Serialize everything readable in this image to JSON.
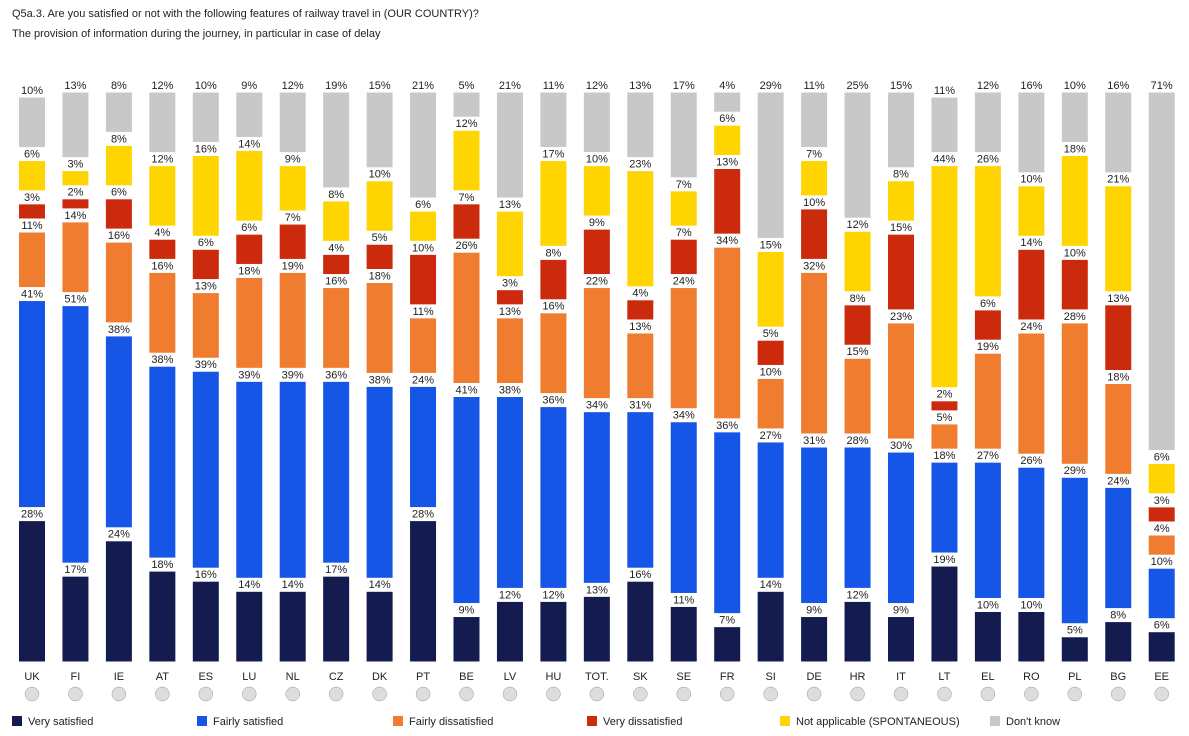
{
  "chart_data": {
    "type": "bar",
    "stacked": true,
    "title": "Q5a.3. Are you satisfied or not with the following features of railway travel in (OUR COUNTRY)?",
    "subtitle": "The provision of information during the journey, in particular in case of delay",
    "categories": [
      "UK",
      "FI",
      "IE",
      "AT",
      "ES",
      "LU",
      "NL",
      "CZ",
      "DK",
      "PT",
      "BE",
      "LV",
      "HU",
      "TOT.",
      "SK",
      "SE",
      "FR",
      "SI",
      "DE",
      "HR",
      "IT",
      "LT",
      "EL",
      "RO",
      "PL",
      "BG",
      "EE"
    ],
    "series": [
      {
        "name": "Very satisfied",
        "color": "#141c4f",
        "values": [
          28,
          17,
          24,
          18,
          16,
          14,
          14,
          17,
          14,
          28,
          9,
          12,
          12,
          13,
          16,
          11,
          7,
          14,
          9,
          12,
          9,
          19,
          10,
          10,
          5,
          8,
          6
        ],
        "value_labels": [
          "28%",
          "17%",
          "24%",
          "18%",
          "16%",
          "14%",
          "14%",
          "17%",
          "14%",
          "28%",
          "9%",
          "12%",
          "12%",
          "13%",
          "16%",
          "11%",
          "7%",
          "14%",
          "9%",
          "12%",
          "9%",
          "19%",
          "10%",
          "10%",
          "5%",
          "8%",
          "6%"
        ]
      },
      {
        "name": "Fairly satisfied",
        "color": "#1656e6",
        "values": [
          41,
          51,
          38,
          38,
          39,
          39,
          39,
          36,
          38,
          24,
          41,
          38,
          36,
          34,
          31,
          34,
          36,
          27,
          31,
          28,
          30,
          18,
          27,
          26,
          29,
          24,
          10
        ],
        "value_labels": [
          "41%",
          "51%",
          "38%",
          "38%",
          "39%",
          "39%",
          "39%",
          "36%",
          "38%",
          "24%",
          "41%",
          "38%",
          "36%",
          "34%",
          "31%",
          "34%",
          "36%",
          "27%",
          "31%",
          "28%",
          "30%",
          "18%",
          "27%",
          "26%",
          "29%",
          "24%",
          "10%"
        ]
      },
      {
        "name": "Fairly dissatisfied",
        "color": "#f07c30",
        "values": [
          11,
          14,
          16,
          16,
          13,
          18,
          19,
          16,
          18,
          11,
          26,
          13,
          16,
          22,
          13,
          24,
          34,
          10,
          32,
          15,
          23,
          5,
          19,
          24,
          28,
          18,
          4
        ],
        "value_labels": [
          "11%",
          "14%",
          "16%",
          "16%",
          "13%",
          "18%",
          "19%",
          "16%",
          "18%",
          "11%",
          "26%",
          "13%",
          "16%",
          "22%",
          "13%",
          "24%",
          "34%",
          "10%",
          "32%",
          "15%",
          "23%",
          "5%",
          "19%",
          "24%",
          "28%",
          "18%",
          "4%"
        ]
      },
      {
        "name": "Very dissatisfied",
        "color": "#cc2a0c",
        "values": [
          3,
          2,
          6,
          4,
          6,
          6,
          7,
          4,
          5,
          10,
          7,
          3,
          8,
          9,
          4,
          7,
          13,
          5,
          10,
          8,
          15,
          2,
          6,
          14,
          10,
          13,
          3
        ],
        "value_labels": [
          "3%",
          "2%",
          "6%",
          "4%",
          "6%",
          "6%",
          "7%",
          "4%",
          "5%",
          "10%",
          "7%",
          "3%",
          "8%",
          "9%",
          "4%",
          "7%",
          "13%",
          "5%",
          "10%",
          "8%",
          "15%",
          "2%",
          "6%",
          "14%",
          "10%",
          "13%",
          "3%"
        ]
      },
      {
        "name": "Not applicable (SPONTANEOUS)",
        "color": "#ffd500",
        "values": [
          6,
          3,
          8,
          12,
          16,
          14,
          9,
          8,
          10,
          6,
          12,
          13,
          17,
          10,
          23,
          7,
          6,
          15,
          7,
          12,
          8,
          44,
          26,
          10,
          18,
          21,
          6
        ],
        "value_labels": [
          "6%",
          "3%",
          "8%",
          "12%",
          "16%",
          "14%",
          "9%",
          "8%",
          "10%",
          "6%",
          "12%",
          "13%",
          "17%",
          "10%",
          "23%",
          "7%",
          "6%",
          "15%",
          "7%",
          "12%",
          "8%",
          "44%",
          "26%",
          "10%",
          "18%",
          "21%",
          "6%"
        ]
      },
      {
        "name": "Don't know",
        "color": "#c8c8c8",
        "values": [
          10,
          13,
          8,
          12,
          10,
          9,
          12,
          19,
          15,
          21,
          5,
          21,
          11,
          12,
          13,
          17,
          4,
          29,
          11,
          25,
          15,
          11,
          12,
          16,
          10,
          16,
          71
        ],
        "value_labels": [
          "10%",
          "13%",
          "8%",
          "12%",
          "10%",
          "9%",
          "12%",
          "19%",
          "15%",
          "21%",
          "5%",
          "21%",
          "11%",
          "12%",
          "13%",
          "17%",
          "4%",
          "29%",
          "11%",
          "25%",
          "15%",
          "11%",
          "12%",
          "16%",
          "10%",
          "16%",
          "71%"
        ]
      }
    ]
  }
}
